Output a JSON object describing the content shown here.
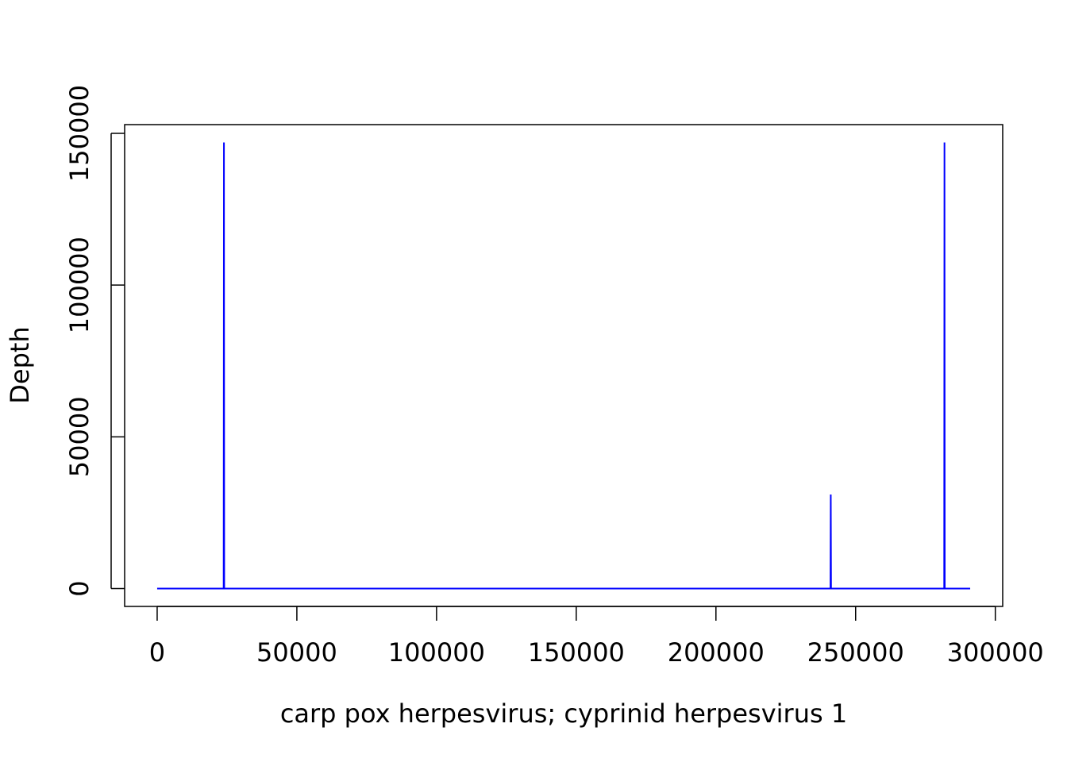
{
  "chart_data": {
    "type": "line",
    "xlabel": "carp pox herpesvirus; cyprinid herpesvirus 1",
    "ylabel": "Depth",
    "x": [
      0,
      23800,
      23900,
      24000,
      241000,
      241100,
      241200,
      281700,
      281800,
      281900,
      291000
    ],
    "series": [
      {
        "name": "Depth",
        "color": "#0000ff",
        "values": [
          0,
          0,
          147000,
          0,
          0,
          31000,
          0,
          0,
          147000,
          0,
          0
        ]
      }
    ],
    "xlim": [
      -11640,
      302640
    ],
    "ylim": [
      -5880,
      152880
    ],
    "xticks": [
      0,
      50000,
      100000,
      150000,
      200000,
      250000,
      300000
    ],
    "yticks": [
      0,
      50000,
      100000,
      150000
    ]
  }
}
